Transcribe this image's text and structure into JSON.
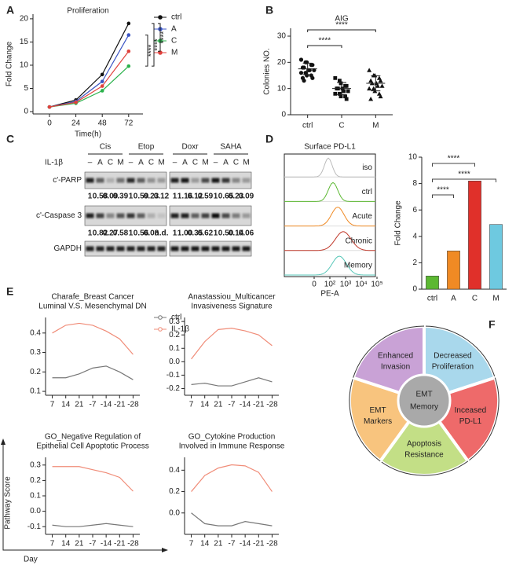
{
  "panel_labels": [
    "A",
    "B",
    "C",
    "D",
    "E",
    "F"
  ],
  "chart_data": [
    {
      "type": "line",
      "title": "Proliferation",
      "xlabel": "Time(h)",
      "ylabel": "Fold Change",
      "x": [
        0,
        24,
        48,
        72
      ],
      "xlim": [
        -15,
        85
      ],
      "xticks": [
        0,
        24,
        48,
        72
      ],
      "ylim": [
        -0.5,
        21
      ],
      "yticks": [
        0,
        5,
        10,
        15,
        20
      ],
      "markers": true,
      "legend": "outside-right",
      "series": [
        {
          "name": "ctrl",
          "color": "#111111",
          "values": [
            1,
            2.5,
            8,
            19
          ]
        },
        {
          "name": "A",
          "color": "#3b55c4",
          "values": [
            1,
            2.2,
            6.5,
            16.5
          ]
        },
        {
          "name": "C",
          "color": "#2bb24c",
          "values": [
            1,
            1.8,
            4.5,
            9.8
          ]
        },
        {
          "name": "M",
          "color": "#e0413c",
          "values": [
            1,
            2,
            5.5,
            13
          ]
        }
      ],
      "annotations": [
        "****",
        "****",
        "****"
      ]
    },
    {
      "type": "dot",
      "title": "AIG",
      "ylabel": "Colonies NO.",
      "categories": [
        "ctrl",
        "C",
        "M"
      ],
      "ylim": [
        0,
        33
      ],
      "yticks": [
        0,
        10,
        20,
        30
      ],
      "markers": [
        "circle",
        "square",
        "triangle"
      ],
      "points": [
        [
          21,
          20,
          20,
          19,
          19,
          18,
          18,
          17,
          17,
          17,
          16,
          16,
          15,
          15,
          14,
          14,
          13
        ],
        [
          14,
          13,
          12,
          11,
          11,
          10,
          10,
          10,
          9,
          9,
          8,
          8,
          7,
          7,
          6
        ],
        [
          17,
          15,
          15,
          14,
          13,
          13,
          12,
          12,
          11,
          11,
          10,
          10,
          9,
          8,
          7,
          6
        ]
      ],
      "means": [
        17.5,
        10,
        12
      ],
      "sd": [
        2.2,
        2.3,
        2.9
      ],
      "annotations": [
        "****",
        "****"
      ]
    },
    {
      "type": "bar",
      "ylabel": "Fold Change",
      "categories": [
        "ctrl",
        "A",
        "C",
        "M"
      ],
      "values": [
        1,
        2.9,
        8.2,
        4.9
      ],
      "colors": [
        "#5cb832",
        "#f08a24",
        "#e0302a",
        "#6ec9e0"
      ],
      "ylim": [
        0,
        10
      ],
      "yticks": [
        0,
        2,
        4,
        6,
        8,
        10
      ],
      "annotations": [
        "****",
        "****",
        "****"
      ]
    },
    {
      "type": "line",
      "title": [
        "Charafe_Breast Cancer",
        "Luminal V.S. Mesenchymal DN"
      ],
      "categories": [
        "7",
        "14",
        "21",
        "-7",
        "-14",
        "-21",
        "-28"
      ],
      "ylim": [
        0.08,
        0.48
      ],
      "yticks": [
        0.1,
        0.2,
        0.3,
        0.4
      ],
      "legend": "outside-right",
      "series": [
        {
          "name": "ctrl",
          "color": "#777777",
          "values": [
            0.17,
            0.17,
            0.19,
            0.22,
            0.23,
            0.2,
            0.16
          ]
        },
        {
          "name": "IL-1β",
          "color": "#f08c78",
          "values": [
            0.4,
            0.44,
            0.45,
            0.44,
            0.41,
            0.37,
            0.29
          ]
        }
      ]
    },
    {
      "type": "line",
      "title": [
        "Anastassiou_Multicancer",
        "Invasiveness Signature"
      ],
      "categories": [
        "7",
        "14",
        "21",
        "-7",
        "-14",
        "-21",
        "-28"
      ],
      "ylim": [
        -0.25,
        0.33
      ],
      "yticks": [
        -0.2,
        -0.1,
        {
          "value": 0,
          "label": "0.0"
        },
        0.1,
        0.2,
        0.3
      ],
      "series": [
        {
          "name": "ctrl",
          "color": "#777777",
          "values": [
            -0.17,
            -0.16,
            -0.18,
            -0.18,
            -0.15,
            -0.12,
            -0.15
          ]
        },
        {
          "name": "IL-1β",
          "color": "#f08c78",
          "values": [
            0.02,
            0.15,
            0.24,
            0.25,
            0.23,
            0.2,
            0.12
          ]
        }
      ]
    },
    {
      "type": "line",
      "title": [
        "GO_Negative Regulation of",
        "Epithelial Cell Apoptotic Process"
      ],
      "categories": [
        "7",
        "14",
        "21",
        "-7",
        "-14",
        "-21",
        "-28"
      ],
      "ylim": [
        -0.15,
        0.35
      ],
      "yticks": [
        -0.1,
        {
          "value": 0,
          "label": "0.0"
        },
        0.1,
        0.2,
        0.3
      ],
      "series": [
        {
          "name": "ctrl",
          "color": "#777777",
          "values": [
            -0.09,
            -0.1,
            -0.1,
            -0.09,
            -0.08,
            -0.09,
            -0.1
          ]
        },
        {
          "name": "IL-1β",
          "color": "#f08c78",
          "values": [
            0.29,
            0.29,
            0.29,
            0.27,
            0.25,
            0.22,
            0.13
          ]
        }
      ]
    },
    {
      "type": "line",
      "title": [
        "GO_Cytokine Production",
        "Involved in Immune Response"
      ],
      "categories": [
        "7",
        "14",
        "21",
        "-7",
        "-14",
        "-21",
        "-28"
      ],
      "ylim": [
        -0.2,
        0.52
      ],
      "yticks": [
        {
          "value": 0,
          "label": "0.0"
        },
        0.2,
        0.4
      ],
      "series": [
        {
          "name": "ctrl",
          "color": "#777777",
          "values": [
            0,
            -0.1,
            -0.12,
            -0.12,
            -0.08,
            -0.1,
            -0.12
          ]
        },
        {
          "name": "IL-1β",
          "color": "#f08c78",
          "values": [
            0.2,
            0.35,
            0.42,
            0.45,
            0.44,
            0.38,
            0.2
          ]
        }
      ]
    }
  ],
  "panel_e": {
    "ylabel": "Pathway Score",
    "xlabel": "Day"
  },
  "blot": {
    "groups": [
      "Cis",
      "Etop",
      "Doxr",
      "SAHA"
    ],
    "treatment_label": "IL-1β",
    "lanes": [
      "–",
      "A",
      "C",
      "M"
    ],
    "rows": [
      "c'-PARP",
      "c'-Caspase 3",
      "GAPDH"
    ],
    "quant": [
      [
        "1",
        "0.58",
        "0.09",
        "0.39",
        "1",
        "0.59",
        "0.23",
        "0.12",
        "1",
        "1.16",
        "0.12",
        "0.59",
        "1",
        "0.65",
        "0.23",
        "0.09"
      ],
      [
        "1",
        "0.82",
        "0.27",
        "0.58",
        "1",
        "0.56",
        "0.08",
        "n.d.",
        "1",
        "1.00",
        "0.35",
        "0.62",
        "1",
        "0.50",
        "0.14",
        "0.06"
      ]
    ]
  },
  "flow": {
    "title": "Surface PD-L1",
    "samples": [
      "iso",
      "ctrl",
      "Acute",
      "Chronic",
      "Memory"
    ],
    "xlabel": "PE-A",
    "xticks": [
      "0",
      "10²",
      "10³",
      "10⁴",
      "10⁵"
    ]
  },
  "diagram": {
    "center": [
      "EMT",
      "Memory"
    ],
    "segments": [
      {
        "label": [
          "Decreased",
          "Proliferation"
        ],
        "color": "#a9d8ec"
      },
      {
        "label": [
          "Inceased",
          "PD-L1"
        ],
        "color": "#ee6a6a"
      },
      {
        "label": [
          "Apoptosis",
          "Resistance"
        ],
        "color": "#c3df86"
      },
      {
        "label": [
          "EMT",
          "Markers"
        ],
        "color": "#f8c47e"
      },
      {
        "label": [
          "Enhanced",
          "Invasion"
        ],
        "color": "#c9a2d6"
      }
    ]
  }
}
